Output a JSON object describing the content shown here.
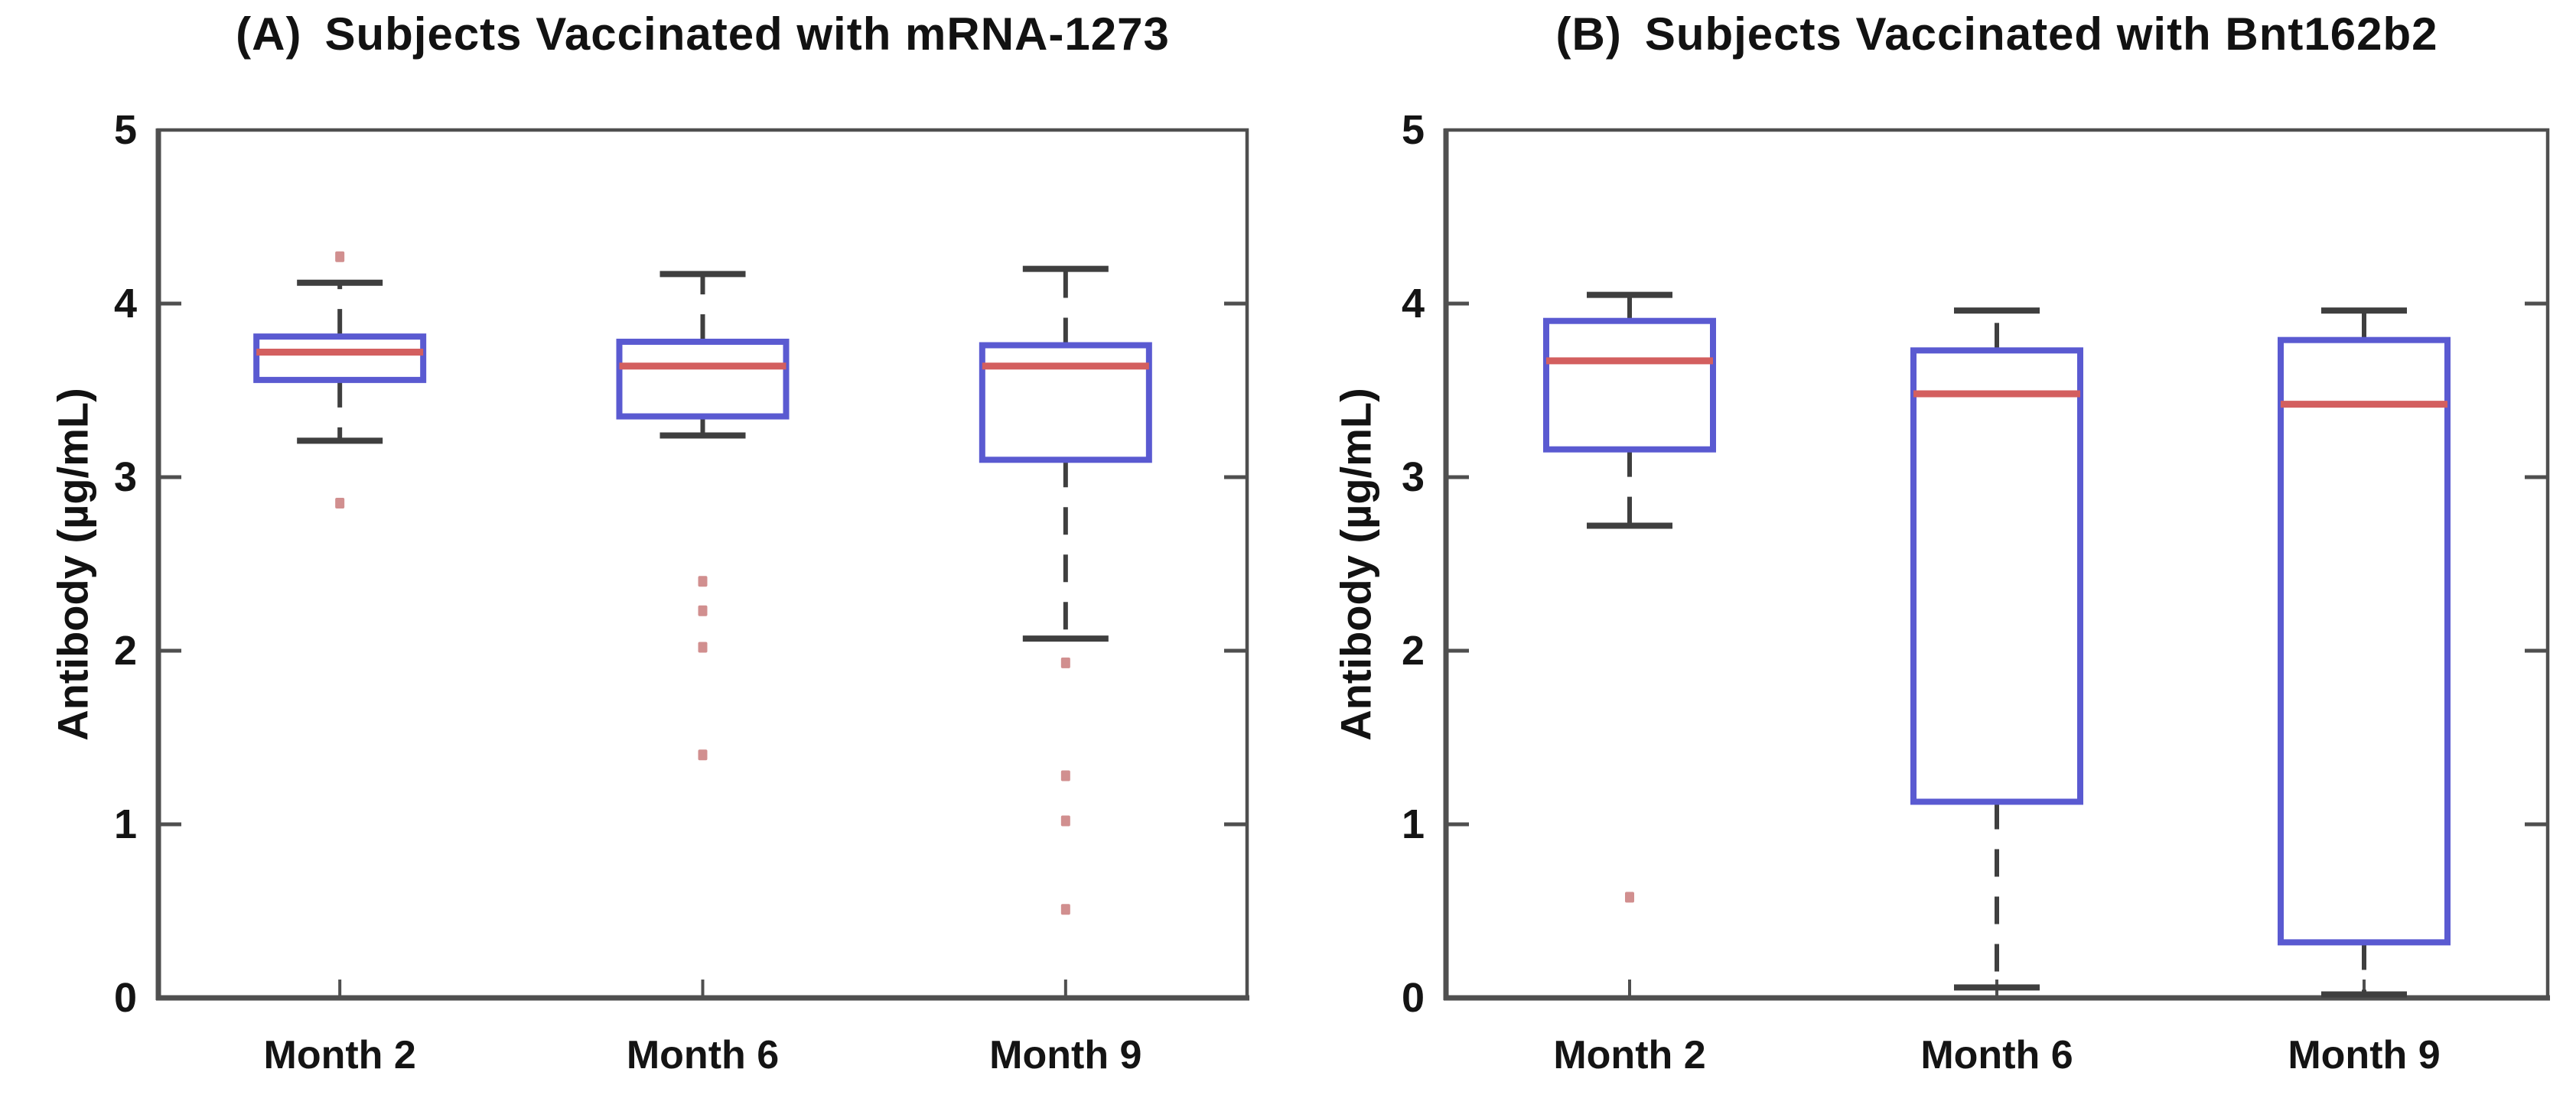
{
  "figure": {
    "background": "#ffffff",
    "ylabel": "Antibody (µg/mL)"
  },
  "style": {
    "box_color": "#5a5ad1",
    "median_color": "#d35f5f",
    "whisker_color": "#3f3f3f",
    "outlier_color": "#c97b7b",
    "axis_color": "#4f4f4f",
    "text_color": "#141414"
  },
  "chart_data": [
    {
      "type": "box",
      "panel": "A",
      "title_prefix": "(A)",
      "title": "Subjects Vaccinated with mRNA-1273",
      "ylabel": "Antibody (µg/mL)",
      "xlabel": "",
      "ylim": [
        0,
        5
      ],
      "yticks": [
        0,
        1,
        2,
        3,
        4,
        5
      ],
      "grid": false,
      "legend": false,
      "categories": [
        "Month 2",
        "Month 6",
        "Month 9"
      ],
      "boxes": [
        {
          "category": "Month 2",
          "whisker_low": 3.21,
          "q1": 3.56,
          "median": 3.72,
          "q3": 3.81,
          "whisker_high": 4.12,
          "outliers": [
            4.27,
            2.85
          ]
        },
        {
          "category": "Month 6",
          "whisker_low": 3.24,
          "q1": 3.35,
          "median": 3.64,
          "q3": 3.78,
          "whisker_high": 4.17,
          "outliers": [
            2.4,
            2.23,
            2.02,
            1.4
          ]
        },
        {
          "category": "Month 9",
          "whisker_low": 2.07,
          "q1": 3.1,
          "median": 3.64,
          "q3": 3.76,
          "whisker_high": 4.2,
          "outliers": [
            1.93,
            1.28,
            1.02,
            0.51
          ]
        }
      ]
    },
    {
      "type": "box",
      "panel": "B",
      "title_prefix": "(B)",
      "title": "Subjects Vaccinated with Bnt162b2",
      "ylabel": "Antibody (µg/mL)",
      "xlabel": "",
      "ylim": [
        0,
        5
      ],
      "yticks": [
        0,
        1,
        2,
        3,
        4,
        5
      ],
      "grid": false,
      "legend": false,
      "categories": [
        "Month 2",
        "Month 6",
        "Month 9"
      ],
      "boxes": [
        {
          "category": "Month 2",
          "whisker_low": 2.72,
          "q1": 3.16,
          "median": 3.67,
          "q3": 3.9,
          "whisker_high": 4.05,
          "outliers": [
            0.58
          ]
        },
        {
          "category": "Month 6",
          "whisker_low": 0.06,
          "q1": 1.13,
          "median": 3.48,
          "q3": 3.73,
          "whisker_high": 3.96,
          "outliers": []
        },
        {
          "category": "Month 9",
          "whisker_low": 0.02,
          "q1": 0.32,
          "median": 3.42,
          "q3": 3.79,
          "whisker_high": 3.96,
          "outliers": []
        }
      ]
    }
  ]
}
